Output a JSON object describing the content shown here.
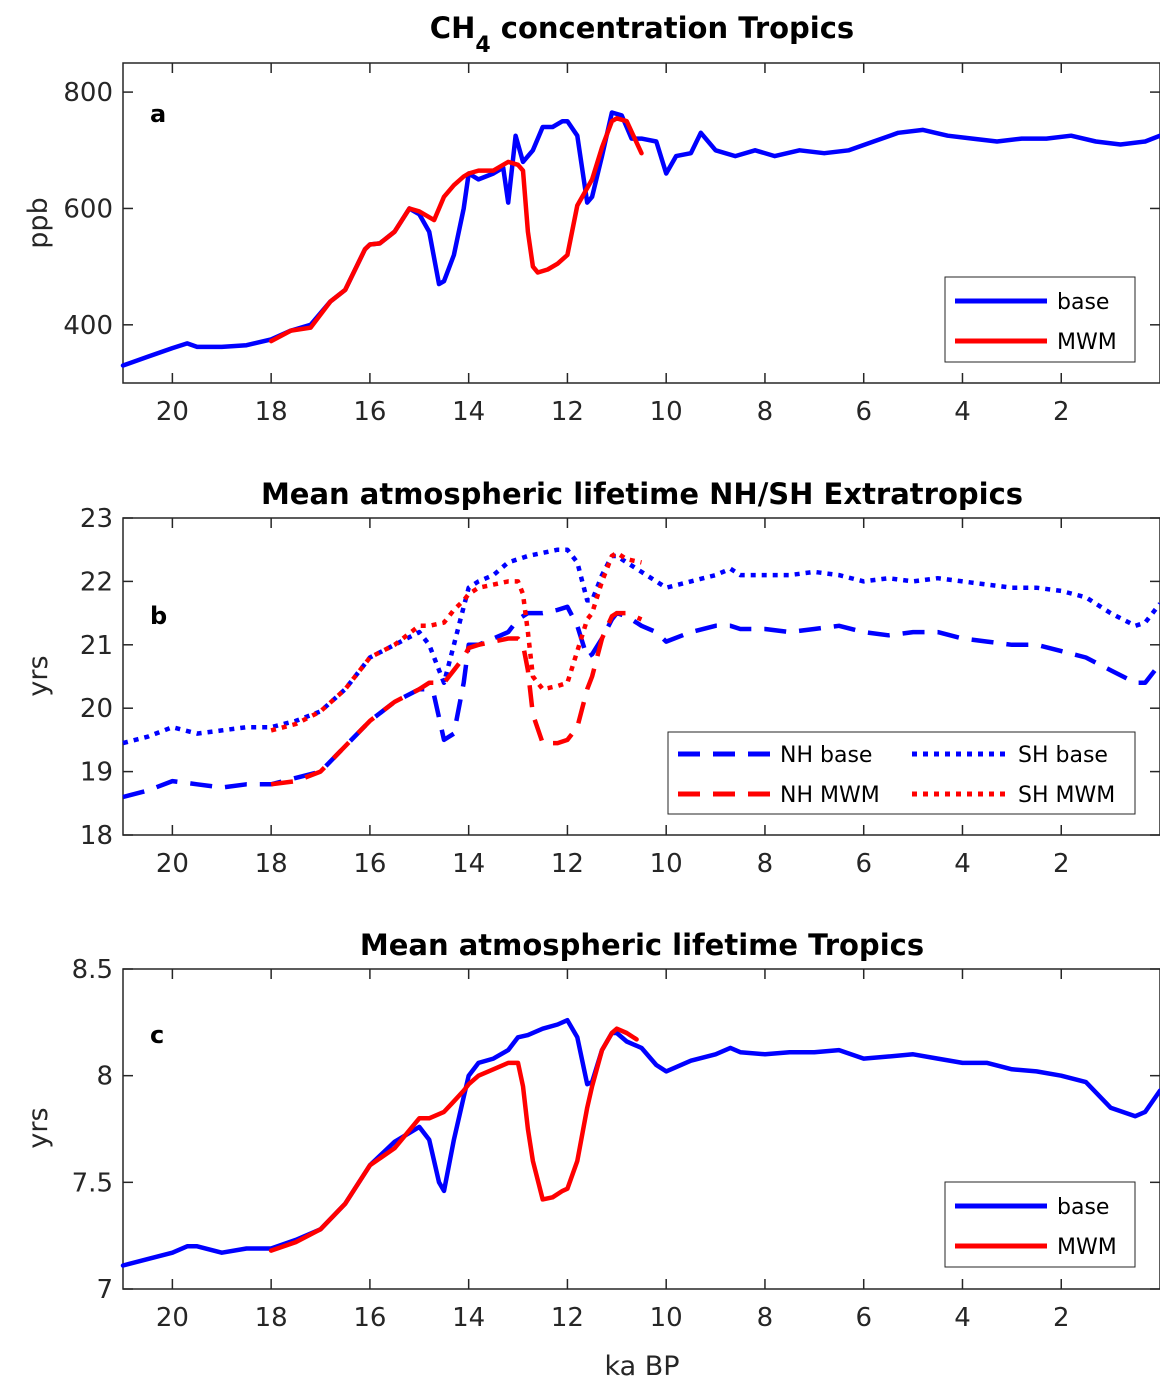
{
  "figure": {
    "xlabel": "ka BP",
    "x_range": [
      21,
      0
    ],
    "x_ticks": [
      20,
      18,
      16,
      14,
      12,
      10,
      8,
      6,
      4,
      2
    ]
  },
  "chart_data": [
    {
      "type": "line",
      "panel": "a",
      "title_main": "CH",
      "title_sub": "4",
      "title_rest": " concentration Tropics",
      "ylabel": "ppb",
      "ylim": [
        300,
        850
      ],
      "y_ticks": [
        400,
        600,
        800
      ],
      "legend": "bottom-right",
      "series": [
        {
          "name": "base",
          "color": "#0000ff",
          "style": "solid",
          "x": [
            21,
            20.5,
            20,
            19.7,
            19.5,
            19,
            18.5,
            18,
            17.6,
            17.2,
            16.8,
            16.5,
            16.1,
            16,
            15.8,
            15.5,
            15.2,
            15,
            14.8,
            14.6,
            14.5,
            14.3,
            14.1,
            14,
            13.8,
            13.5,
            13.3,
            13.2,
            13.05,
            12.9,
            12.7,
            12.5,
            12.3,
            12.1,
            12,
            11.8,
            11.6,
            11.5,
            11.3,
            11.1,
            10.9,
            10.7,
            10.5,
            10.2,
            10,
            9.8,
            9.5,
            9.3,
            9,
            8.6,
            8.2,
            7.8,
            7.3,
            6.8,
            6.3,
            5.8,
            5.3,
            4.8,
            4.3,
            3.8,
            3.3,
            2.8,
            2.3,
            1.8,
            1.3,
            0.8,
            0.3,
            0
          ],
          "y": [
            330,
            345,
            360,
            368,
            362,
            362,
            365,
            375,
            390,
            400,
            440,
            460,
            530,
            538,
            540,
            560,
            600,
            590,
            560,
            470,
            475,
            520,
            600,
            660,
            650,
            660,
            670,
            610,
            725,
            680,
            700,
            740,
            740,
            750,
            750,
            725,
            610,
            620,
            690,
            765,
            760,
            720,
            720,
            715,
            660,
            690,
            695,
            730,
            700,
            690,
            700,
            690,
            700,
            695,
            700,
            715,
            730,
            735,
            725,
            720,
            715,
            720,
            720,
            725,
            715,
            710,
            715,
            725
          ]
        },
        {
          "name": "MWM",
          "color": "#ff0000",
          "style": "solid",
          "x": [
            18,
            17.6,
            17.2,
            16.8,
            16.5,
            16.1,
            16,
            15.8,
            15.5,
            15.2,
            15,
            14.7,
            14.5,
            14.3,
            14.1,
            14,
            13.8,
            13.5,
            13.2,
            13,
            12.9,
            12.8,
            12.7,
            12.6,
            12.4,
            12.2,
            12,
            11.8,
            11.6,
            11.5,
            11.3,
            11.1,
            11,
            10.8,
            10.5
          ],
          "y": [
            372,
            390,
            395,
            440,
            460,
            530,
            538,
            540,
            560,
            600,
            595,
            580,
            620,
            640,
            655,
            660,
            665,
            665,
            680,
            675,
            665,
            560,
            500,
            490,
            495,
            505,
            520,
            605,
            635,
            650,
            705,
            750,
            755,
            750,
            695
          ]
        }
      ]
    },
    {
      "type": "line",
      "panel": "b",
      "title": "Mean atmospheric lifetime NH/SH Extratropics",
      "ylabel": "yrs",
      "ylim": [
        18,
        23
      ],
      "y_ticks": [
        18,
        19,
        20,
        21,
        22,
        23
      ],
      "legend": "bottom-right",
      "series": [
        {
          "name": "NH base",
          "color": "#0000ff",
          "style": "dashed",
          "x": [
            21,
            20.5,
            20,
            19.5,
            19,
            18.5,
            18,
            17.5,
            17,
            16.5,
            16,
            15.5,
            15,
            14.8,
            14.7,
            14.5,
            14.3,
            14.1,
            14,
            13.8,
            13.5,
            13.2,
            13,
            12.8,
            12.5,
            12.2,
            12,
            11.8,
            11.6,
            11.5,
            11.3,
            11.1,
            11,
            10.8,
            10.5,
            10.2,
            10,
            9.5,
            9,
            8.7,
            8.5,
            8,
            7.5,
            7,
            6.5,
            6,
            5.5,
            5,
            4.5,
            4,
            3.5,
            3,
            2.5,
            2,
            1.5,
            1,
            0.5,
            0.3,
            0
          ],
          "y": [
            18.6,
            18.7,
            18.85,
            18.8,
            18.75,
            18.8,
            18.8,
            18.9,
            19.0,
            19.4,
            19.8,
            20.1,
            20.3,
            20.3,
            20.2,
            19.5,
            19.6,
            20.4,
            21.0,
            21.0,
            21.1,
            21.2,
            21.4,
            21.5,
            21.5,
            21.55,
            21.6,
            21.3,
            20.8,
            20.85,
            21.1,
            21.4,
            21.5,
            21.45,
            21.3,
            21.2,
            21.05,
            21.2,
            21.3,
            21.3,
            21.25,
            21.25,
            21.2,
            21.25,
            21.3,
            21.2,
            21.15,
            21.2,
            21.2,
            21.1,
            21.05,
            21.0,
            21.0,
            20.9,
            20.8,
            20.6,
            20.4,
            20.4,
            20.7
          ]
        },
        {
          "name": "SH base",
          "color": "#0000ff",
          "style": "dotted",
          "x": [
            21,
            20.5,
            20,
            19.5,
            19,
            18.5,
            18,
            17.5,
            17,
            16.5,
            16,
            15.5,
            15,
            14.8,
            14.7,
            14.5,
            14.3,
            14.1,
            14,
            13.8,
            13.5,
            13.2,
            13,
            12.8,
            12.5,
            12.2,
            12,
            11.8,
            11.6,
            11.5,
            11.3,
            11.1,
            11,
            10.8,
            10.5,
            10.2,
            10,
            9.5,
            9,
            8.7,
            8.5,
            8,
            7.5,
            7,
            6.5,
            6,
            5.5,
            5,
            4.5,
            4,
            3.5,
            3,
            2.5,
            2,
            1.5,
            1,
            0.5,
            0.3,
            0
          ],
          "y": [
            19.45,
            19.55,
            19.7,
            19.6,
            19.65,
            19.7,
            19.7,
            19.8,
            19.95,
            20.3,
            20.8,
            21.0,
            21.2,
            21.0,
            20.8,
            20.4,
            21.0,
            21.6,
            21.9,
            22.0,
            22.1,
            22.3,
            22.35,
            22.4,
            22.45,
            22.5,
            22.5,
            22.3,
            21.7,
            21.7,
            22.1,
            22.4,
            22.4,
            22.3,
            22.15,
            22.0,
            21.9,
            22.0,
            22.1,
            22.2,
            22.1,
            22.1,
            22.1,
            22.15,
            22.1,
            22.0,
            22.05,
            22.0,
            22.05,
            22.0,
            21.95,
            21.9,
            21.9,
            21.85,
            21.75,
            21.5,
            21.3,
            21.35,
            21.65
          ]
        },
        {
          "name": "NH MWM",
          "color": "#ff0000",
          "style": "dashed",
          "x": [
            18,
            17.5,
            17,
            16.5,
            16,
            15.5,
            15,
            14.8,
            14.5,
            14.3,
            14.1,
            14,
            13.8,
            13.5,
            13.2,
            13,
            12.9,
            12.8,
            12.7,
            12.5,
            12.2,
            12,
            11.8,
            11.6,
            11.5,
            11.3,
            11.1,
            11,
            10.8,
            10.5
          ],
          "y": [
            18.8,
            18.85,
            19.0,
            19.4,
            19.8,
            20.1,
            20.3,
            20.4,
            20.4,
            20.6,
            20.8,
            20.95,
            21.0,
            21.05,
            21.1,
            21.1,
            21.0,
            20.6,
            19.9,
            19.45,
            19.45,
            19.5,
            19.7,
            20.3,
            20.5,
            21.1,
            21.45,
            21.5,
            21.5,
            21.4
          ]
        },
        {
          "name": "SH MWM",
          "color": "#ff0000",
          "style": "dotted",
          "x": [
            18,
            17.5,
            17,
            16.5,
            16,
            15.5,
            15,
            14.8,
            14.5,
            14.3,
            14.1,
            14,
            13.8,
            13.5,
            13.2,
            13,
            12.9,
            12.8,
            12.7,
            12.5,
            12.2,
            12,
            11.8,
            11.6,
            11.5,
            11.3,
            11.1,
            11,
            10.8,
            10.5
          ],
          "y": [
            19.65,
            19.75,
            19.95,
            20.3,
            20.8,
            21.0,
            21.3,
            21.3,
            21.35,
            21.55,
            21.7,
            21.8,
            21.9,
            21.95,
            22.0,
            22.0,
            21.8,
            21.2,
            20.5,
            20.3,
            20.35,
            20.4,
            20.9,
            21.4,
            21.5,
            22.0,
            22.4,
            22.45,
            22.35,
            22.3
          ]
        }
      ]
    },
    {
      "type": "line",
      "panel": "c",
      "title": "Mean atmospheric lifetime Tropics",
      "ylabel": "yrs",
      "xlabel": "ka BP",
      "ylim": [
        7,
        8.5
      ],
      "y_ticks": [
        7,
        7.5,
        8,
        8.5
      ],
      "legend": "bottom-right",
      "series": [
        {
          "name": "base",
          "color": "#0000ff",
          "style": "solid",
          "x": [
            21,
            20.5,
            20,
            19.7,
            19.5,
            19,
            18.5,
            18,
            17.5,
            17,
            16.5,
            16,
            15.5,
            15,
            14.8,
            14.6,
            14.5,
            14.3,
            14.1,
            14,
            13.8,
            13.5,
            13.2,
            13,
            12.8,
            12.5,
            12.2,
            12,
            11.8,
            11.6,
            11.5,
            11.3,
            11.1,
            11,
            10.8,
            10.5,
            10.2,
            10,
            9.5,
            9,
            8.7,
            8.5,
            8,
            7.5,
            7,
            6.5,
            6,
            5.5,
            5,
            4.5,
            4,
            3.5,
            3,
            2.5,
            2,
            1.5,
            1,
            0.5,
            0.3,
            0
          ],
          "y": [
            7.11,
            7.14,
            7.17,
            7.2,
            7.2,
            7.17,
            7.19,
            7.19,
            7.23,
            7.28,
            7.4,
            7.58,
            7.69,
            7.76,
            7.7,
            7.5,
            7.46,
            7.7,
            7.9,
            8.0,
            8.06,
            8.08,
            8.12,
            8.18,
            8.19,
            8.22,
            8.24,
            8.26,
            8.18,
            7.96,
            7.97,
            8.12,
            8.2,
            8.2,
            8.16,
            8.13,
            8.05,
            8.02,
            8.07,
            8.1,
            8.13,
            8.11,
            8.1,
            8.11,
            8.11,
            8.12,
            8.08,
            8.09,
            8.1,
            8.08,
            8.06,
            8.06,
            8.03,
            8.02,
            8.0,
            7.97,
            7.85,
            7.81,
            7.83,
            7.93
          ]
        },
        {
          "name": "MWM",
          "color": "#ff0000",
          "style": "solid",
          "x": [
            18,
            17.5,
            17,
            16.5,
            16,
            15.5,
            15,
            14.8,
            14.5,
            14.3,
            14.1,
            14,
            13.8,
            13.5,
            13.2,
            13,
            12.9,
            12.8,
            12.7,
            12.5,
            12.3,
            12.1,
            12,
            11.8,
            11.6,
            11.5,
            11.3,
            11.1,
            11,
            10.8,
            10.6
          ],
          "y": [
            7.18,
            7.22,
            7.28,
            7.4,
            7.58,
            7.66,
            7.8,
            7.8,
            7.83,
            7.88,
            7.93,
            7.96,
            8.0,
            8.03,
            8.06,
            8.06,
            7.95,
            7.75,
            7.6,
            7.42,
            7.43,
            7.46,
            7.47,
            7.6,
            7.85,
            7.95,
            8.12,
            8.2,
            8.22,
            8.2,
            8.17
          ]
        }
      ]
    }
  ]
}
